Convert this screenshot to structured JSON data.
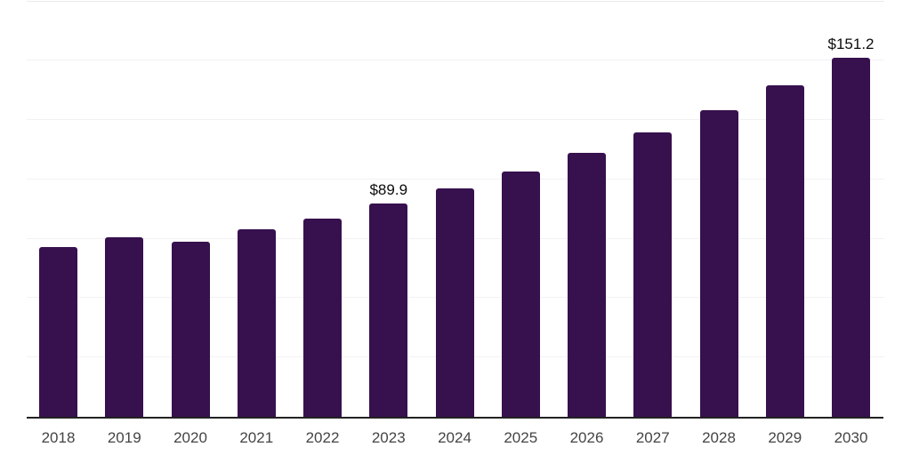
{
  "chart_data": {
    "type": "bar",
    "title": "",
    "xlabel": "",
    "ylabel": "",
    "categories": [
      "2018",
      "2019",
      "2020",
      "2021",
      "2022",
      "2023",
      "2024",
      "2025",
      "2026",
      "2027",
      "2028",
      "2029",
      "2030"
    ],
    "values": [
      71.5,
      75.6,
      73.8,
      79.0,
      83.5,
      89.9,
      96.2,
      103.3,
      111.1,
      119.7,
      129.0,
      139.5,
      151.2
    ],
    "value_labels": [
      "",
      "",
      "",
      "",
      "",
      "$89.9",
      "",
      "",
      "",
      "",
      "",
      "",
      "$151.2"
    ],
    "ylim": [
      0,
      175
    ],
    "gridline_values": [
      25,
      50,
      75,
      100,
      125,
      150,
      175
    ],
    "grid": "horizontal-only",
    "legend": "none",
    "y_axis_labels": "none",
    "colors": {
      "bar": "#37104E",
      "axis_line": "#222222",
      "gridline": "#f2f2f5",
      "top_gridline": "#ebebee",
      "tick_label": "#444444",
      "value_label": "#0c0c0c",
      "background": "#ffffff"
    }
  }
}
